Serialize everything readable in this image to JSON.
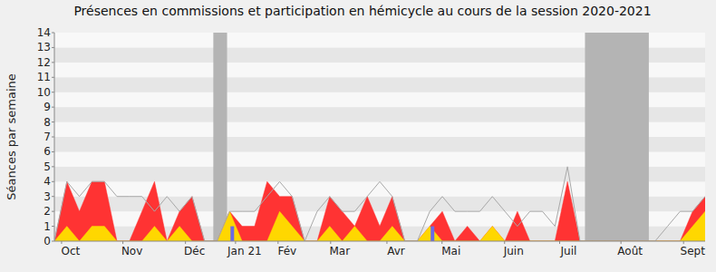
{
  "chart_data": {
    "type": "area",
    "title": "Présences en commissions et participation en hémicycle au cours de la session 2020-2021",
    "y_label": "Séances par semaine",
    "x": [
      0,
      1,
      2,
      3,
      4,
      5,
      6,
      7,
      8,
      9,
      10,
      11,
      12,
      13,
      14,
      15,
      16,
      17,
      18,
      19,
      20,
      21,
      22,
      23,
      24,
      25,
      26,
      27,
      28,
      29,
      30,
      31,
      32,
      33,
      34,
      35,
      36,
      37,
      38,
      39,
      40,
      41,
      42,
      43,
      44,
      45,
      46,
      47,
      48,
      49,
      50,
      51,
      52
    ],
    "xlim": [
      0,
      52
    ],
    "xticks": [
      {
        "value": 1.3,
        "label": "Oct"
      },
      {
        "value": 6.2,
        "label": "Nov"
      },
      {
        "value": 11.2,
        "label": "Déc"
      },
      {
        "value": 15.2,
        "label": "Jan 21"
      },
      {
        "value": 18.6,
        "label": "Fév"
      },
      {
        "value": 22.8,
        "label": "Mar"
      },
      {
        "value": 27.3,
        "label": "Avr"
      },
      {
        "value": 31.7,
        "label": "Mai"
      },
      {
        "value": 36.7,
        "label": "Juin"
      },
      {
        "value": 41.1,
        "label": "Juil"
      },
      {
        "value": 46,
        "label": "Août"
      },
      {
        "value": 51,
        "label": "Sept"
      }
    ],
    "ylim": [
      0,
      14
    ],
    "yticks": [
      0,
      1,
      2,
      3,
      4,
      5,
      6,
      7,
      8,
      9,
      10,
      11,
      12,
      13,
      14
    ],
    "grid": true,
    "stacked": false,
    "shaded_ranges": [
      [
        12.7,
        13.8
      ],
      [
        42.4,
        47.5
      ]
    ],
    "series": [
      {
        "type": "line",
        "color": "#a8a8a8",
        "values": [
          0,
          4,
          3,
          4,
          4,
          3,
          3,
          3,
          2,
          3,
          2,
          3,
          0,
          0,
          2,
          2,
          2,
          3,
          4,
          3,
          0,
          2,
          3,
          2,
          2,
          3,
          4,
          3,
          0,
          0,
          2,
          3,
          2,
          2,
          2,
          3,
          2,
          1,
          2,
          2,
          1,
          5,
          0,
          0,
          0,
          0,
          0,
          0,
          0,
          1,
          2,
          2,
          3
        ]
      },
      {
        "type": "area",
        "color": "#ff3333",
        "values": [
          0,
          4,
          2,
          4,
          4,
          0,
          0,
          2,
          4,
          0,
          2,
          3,
          0,
          0,
          2,
          1,
          1,
          4,
          3,
          3,
          0,
          0,
          3,
          2,
          1,
          3,
          1,
          3,
          0,
          0,
          1,
          2,
          0,
          1,
          0,
          1,
          0,
          2,
          0,
          0,
          0,
          4,
          0,
          0,
          0,
          0,
          0,
          0,
          0,
          0,
          0,
          2,
          3
        ]
      },
      {
        "type": "area",
        "color": "#ffd700",
        "values": [
          0,
          1,
          0,
          1,
          1,
          0,
          0,
          0,
          1,
          0,
          1,
          0,
          0,
          0,
          2,
          0,
          0,
          0,
          2,
          1,
          0,
          0,
          1,
          0,
          1,
          0,
          0,
          1,
          0,
          0,
          1,
          0,
          0,
          0,
          0,
          1,
          0,
          0,
          0,
          0,
          0,
          0,
          0,
          0,
          0,
          0,
          0,
          0,
          0,
          0,
          0,
          1,
          2
        ]
      },
      {
        "type": "bar",
        "color": "#6a6ae6",
        "values": [
          0,
          0,
          0,
          0,
          0,
          0,
          0,
          0,
          0,
          0,
          0,
          0,
          0,
          0,
          1,
          0,
          0,
          0,
          0,
          0,
          0,
          0,
          0,
          0,
          0,
          0,
          0,
          0,
          0,
          0,
          1,
          0,
          0,
          0,
          0,
          0,
          0,
          0,
          0,
          0,
          0,
          0,
          0,
          0,
          0,
          0,
          0,
          0,
          0,
          0,
          0,
          0,
          0
        ]
      }
    ]
  }
}
